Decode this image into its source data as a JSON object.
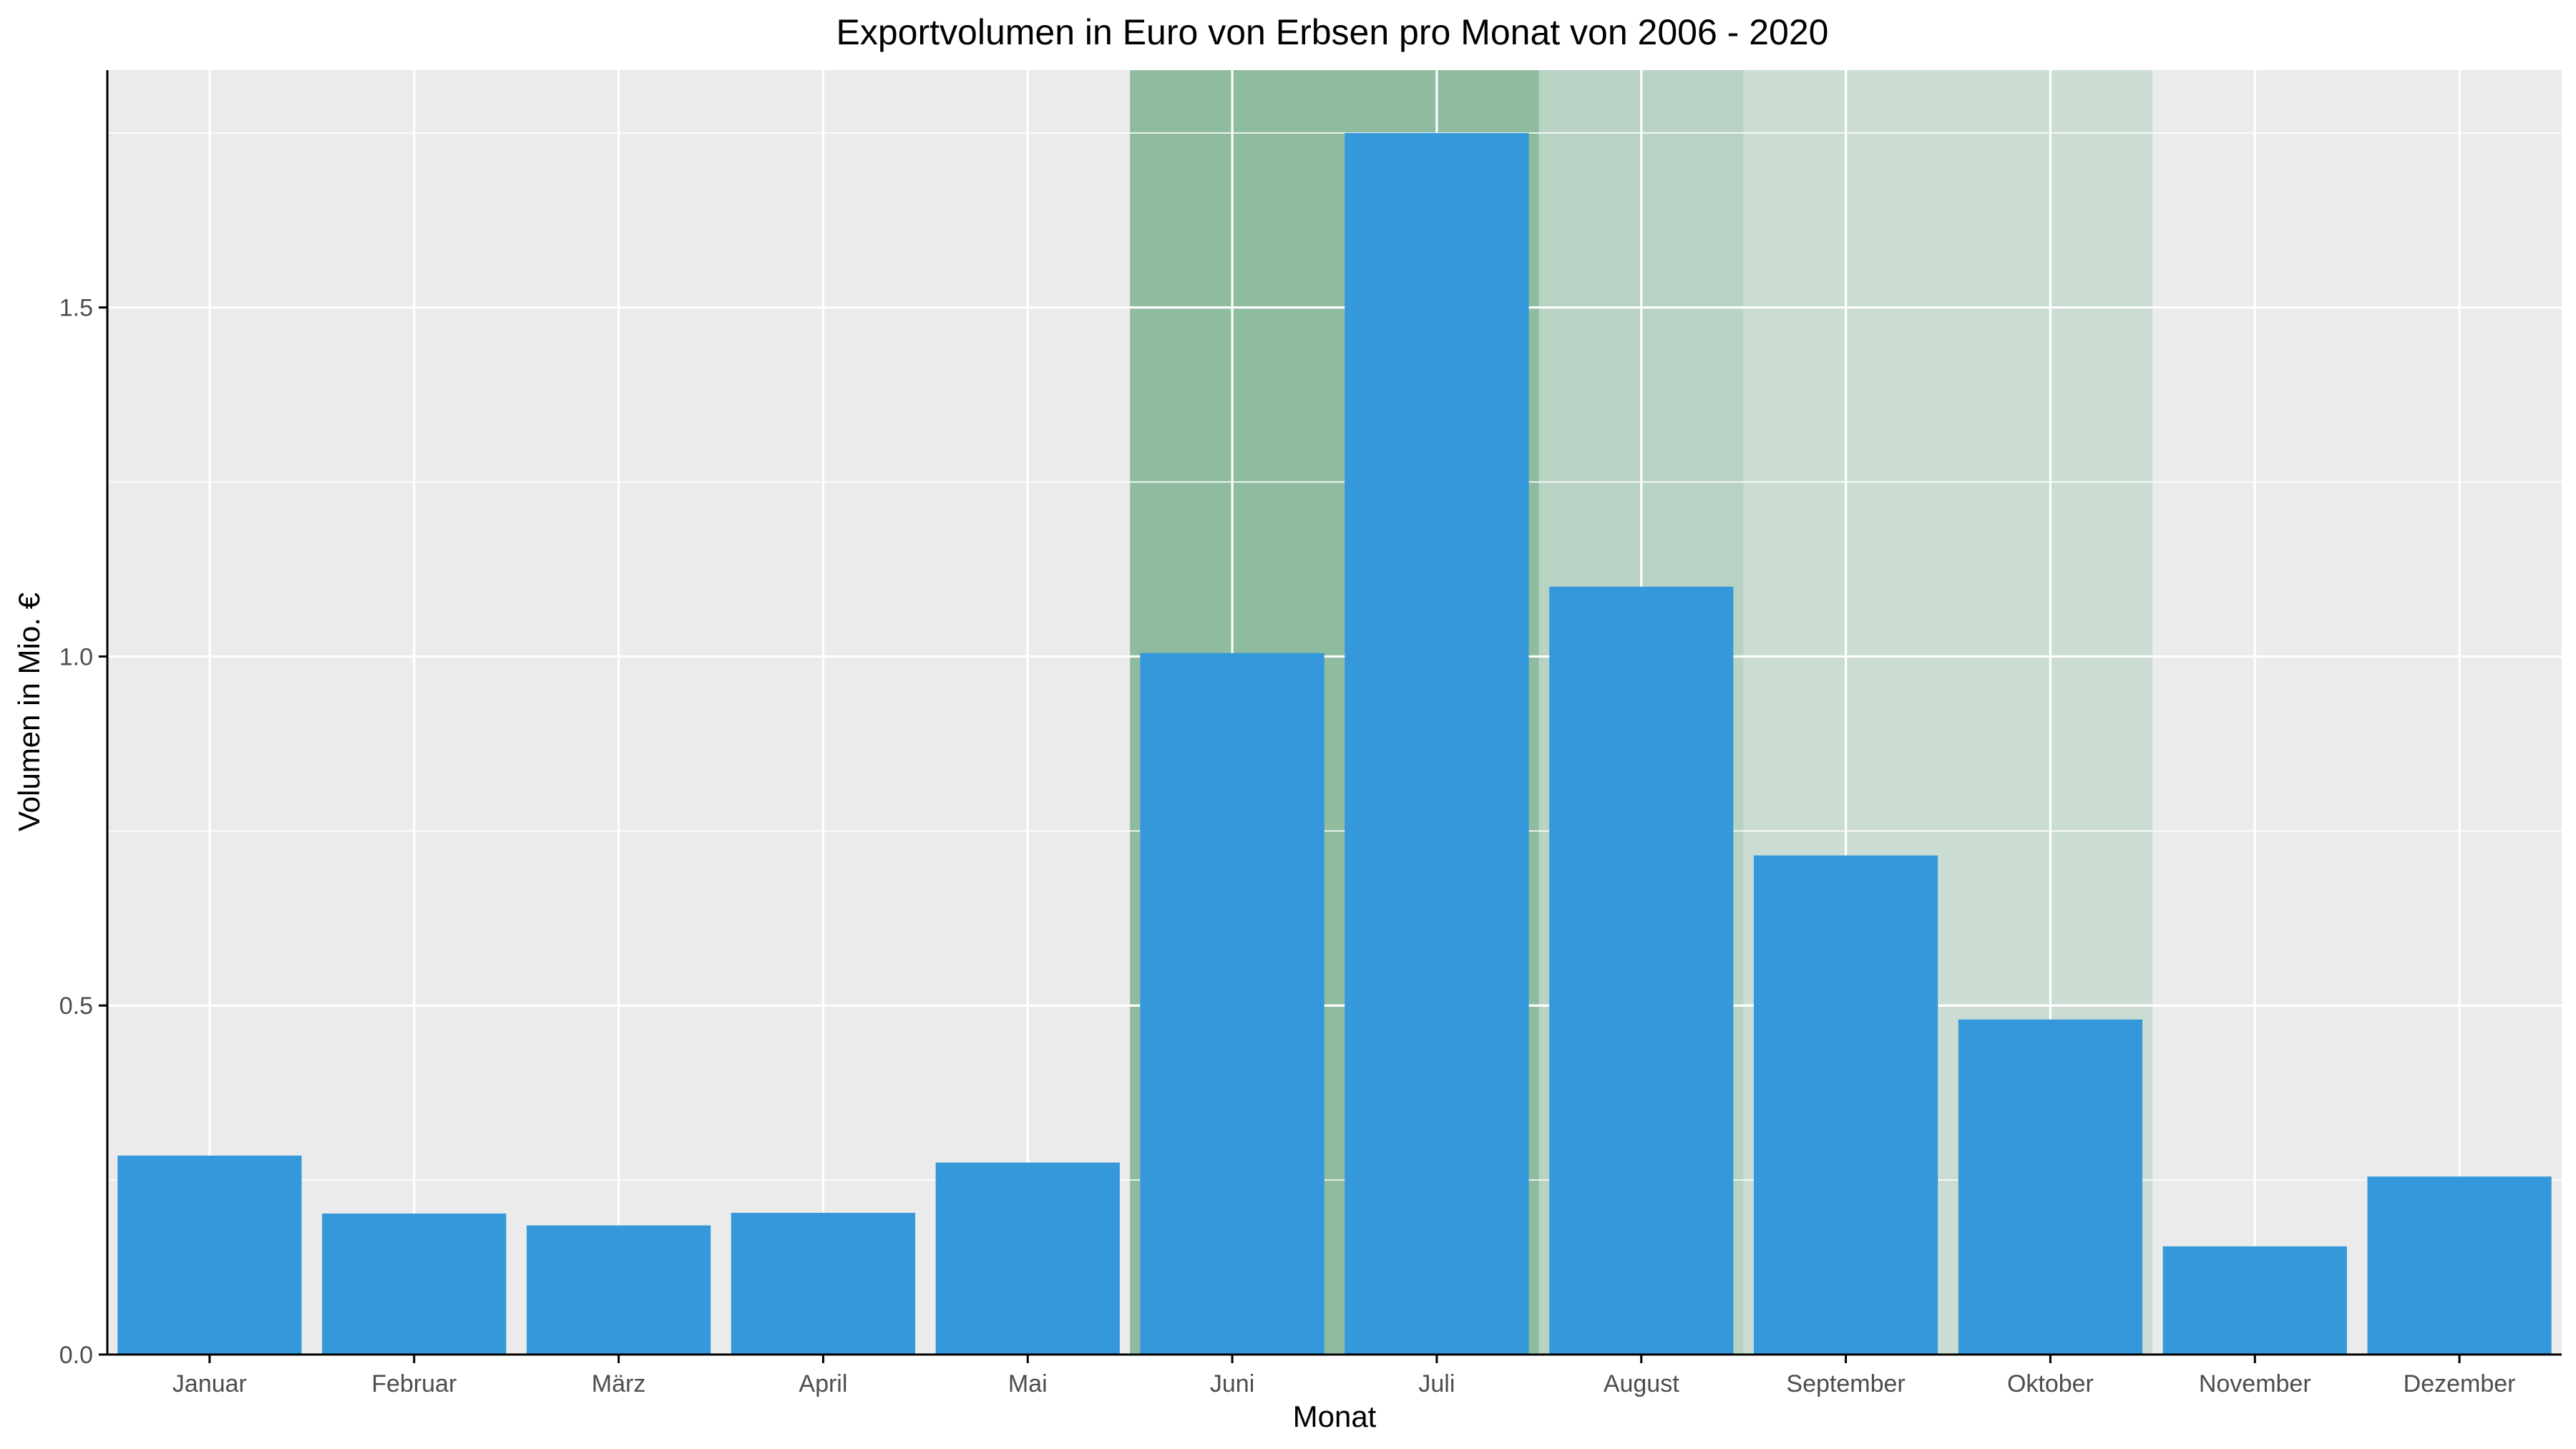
{
  "chart_data": {
    "type": "bar",
    "title": "Exportvolumen in Euro von Erbsen pro Monat von 2006 - 2020",
    "xlabel": "Monat",
    "ylabel": "Volumen in Mio. €",
    "categories": [
      "Januar",
      "Februar",
      "März",
      "April",
      "Mai",
      "Juni",
      "Juli",
      "August",
      "September",
      "Oktober",
      "November",
      "Dezember"
    ],
    "series": [
      {
        "values": [
          0.285,
          0.202,
          0.185,
          0.203,
          0.275,
          1.005,
          1.75,
          1.1,
          0.715,
          0.48,
          0.155,
          0.255
        ],
        "color": "#3598db"
      }
    ],
    "ylim": [
      0,
      1.84
    ],
    "yticks": [
      0.0,
      0.5,
      1.0,
      1.5
    ],
    "ytick_labels": [
      "0.0",
      "0.5",
      "1.0",
      "1.5"
    ],
    "grid": true,
    "legend": "none",
    "highlights": [
      {
        "from": "Juni",
        "to": "Juli",
        "color": "#8fbc9f",
        "opacity": 1.0
      },
      {
        "from": "August",
        "to": "August",
        "color": "#b8d2c3",
        "opacity": 1.0
      },
      {
        "from": "September",
        "to": "Oktober",
        "color": "#cbddd3",
        "opacity": 1.0
      }
    ],
    "colors": {
      "panel_background": "#ebebeb",
      "grid_major": "#ffffff",
      "bar": "#3598db",
      "axis_line": "#000000"
    }
  }
}
